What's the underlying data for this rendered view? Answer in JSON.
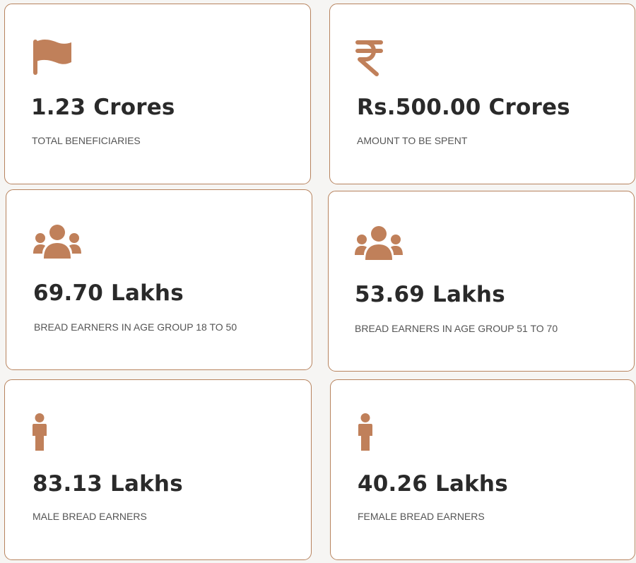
{
  "theme": {
    "accent": "#c0805a",
    "border": "#b7835e",
    "value_color": "#2a2a2a",
    "label_color": "#555555",
    "card_background": "#ffffff"
  },
  "cards": [
    {
      "icon": "flag-icon",
      "value": "1.23 Crores",
      "label": "TOTAL BENEFICIARIES"
    },
    {
      "icon": "rupee-icon",
      "value": "Rs.500.00 Crores",
      "label": "AMOUNT TO BE SPENT"
    },
    {
      "icon": "users-icon",
      "value": "69.70 Lakhs",
      "label": "BREAD EARNERS IN AGE GROUP 18 TO 50"
    },
    {
      "icon": "users-icon",
      "value": "53.69 Lakhs",
      "label": "BREAD EARNERS IN AGE GROUP 51 TO 70"
    },
    {
      "icon": "male-icon",
      "value": "83.13 Lakhs",
      "label": "MALE BREAD EARNERS"
    },
    {
      "icon": "female-icon",
      "value": "40.26 Lakhs",
      "label": "FEMALE BREAD EARNERS"
    }
  ]
}
